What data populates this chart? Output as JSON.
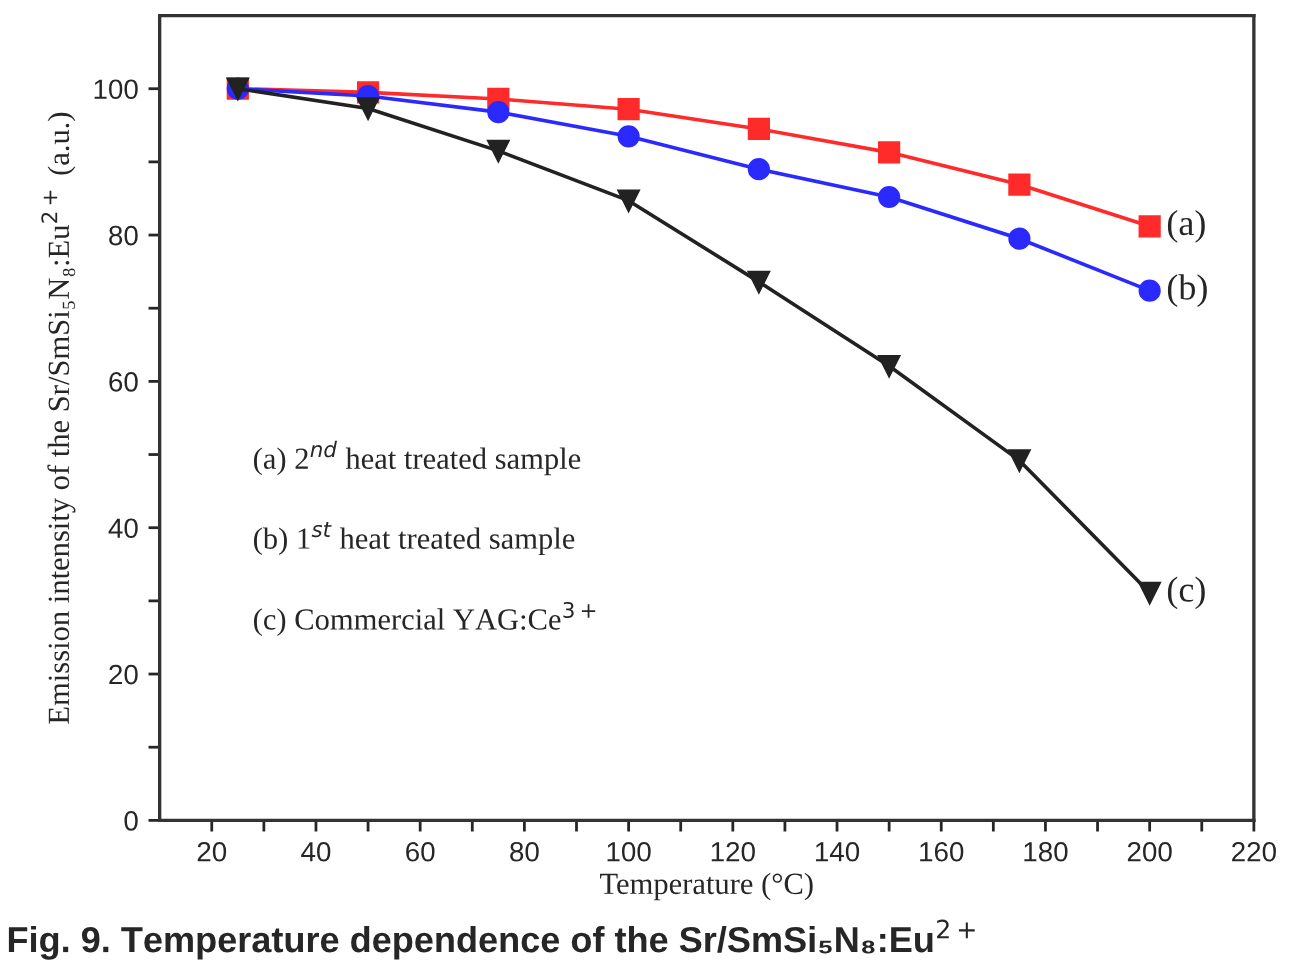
{
  "chart_data": {
    "type": "line",
    "xlabel": "Temperature (°C)",
    "ylabel": "Emission intensity of the Sr/SmSi₅N₈:Eu$^{2+}$ (a.u.)",
    "x": [
      25,
      50,
      75,
      100,
      125,
      150,
      175,
      200
    ],
    "series": [
      {
        "name": "(a)",
        "color": "#ff2a2a",
        "marker": "square",
        "values": [
          100,
          99.5,
          98.6,
          97.2,
          94.5,
          91.3,
          86.9,
          81.2
        ]
      },
      {
        "name": "(b)",
        "color": "#2a2aff",
        "marker": "circle",
        "values": [
          100,
          99.0,
          96.8,
          93.5,
          89.0,
          85.2,
          79.5,
          72.4
        ]
      },
      {
        "name": "(c)",
        "color": "#222222",
        "marker": "triangle",
        "values": [
          100,
          97.3,
          91.5,
          84.7,
          73.6,
          62.1,
          49.2,
          31.1
        ]
      }
    ],
    "annotations": [
      "(a) 2$^{nd}$ heat treated sample",
      "(b) 1$^{st}$ heat treated sample",
      "(c) Commercial YAG:Ce$^{3+}$",
      "Fig. 9. Temperature dependence of the Sr/SmSi₅N₈:Eu$^{2+}$"
    ],
    "xlim": [
      10,
      220
    ],
    "xticks": [
      20,
      {
        "value": 30,
        "label": null
      },
      40,
      {
        "value": 50,
        "label": null
      },
      60,
      {
        "value": 70,
        "label": null
      },
      80,
      {
        "value": 90,
        "label": null
      },
      100,
      {
        "value": 110,
        "label": null
      },
      120,
      {
        "value": 130,
        "label": null
      },
      140,
      {
        "value": 150,
        "label": null
      },
      160,
      {
        "value": 170,
        "label": null
      },
      180,
      {
        "value": 190,
        "label": null
      },
      200,
      {
        "value": 210,
        "label": null
      },
      220
    ],
    "ylim": [
      0,
      110
    ],
    "yticks": [
      0,
      {
        "value": 10,
        "label": null
      },
      20,
      {
        "value": 30,
        "label": null
      },
      40,
      {
        "value": 50,
        "label": null
      },
      60,
      {
        "value": 70,
        "label": null
      },
      80,
      {
        "value": 90,
        "label": null
      },
      100
    ],
    "grid": false,
    "legend": false,
    "line_style": "solid"
  }
}
